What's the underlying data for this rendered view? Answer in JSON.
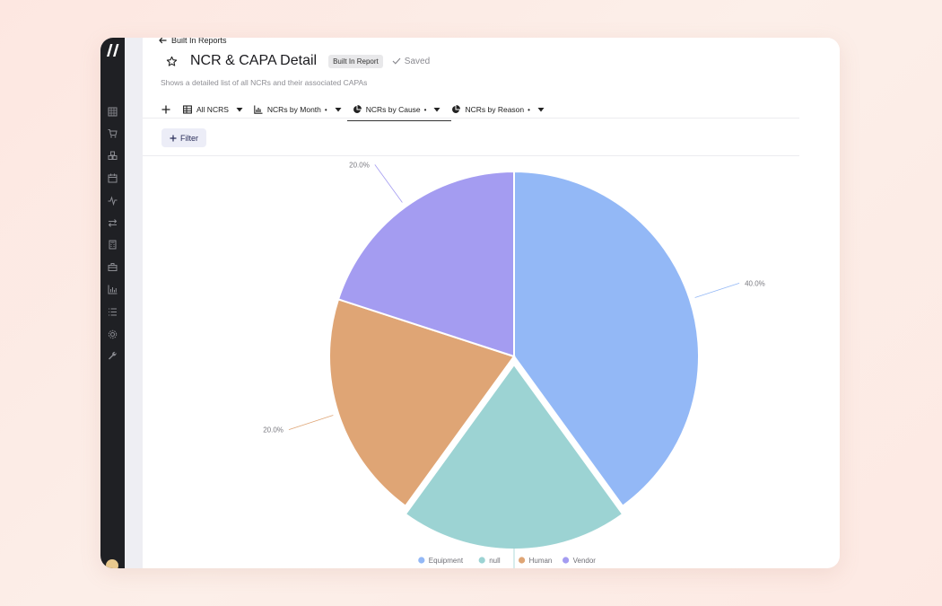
{
  "header": {
    "back_label": "Built In Reports",
    "title": "NCR & CAPA Detail",
    "badge": "Built In Report",
    "saved": "Saved",
    "subtitle": "Shows a detailed list of all NCRs and their associated CAPAs"
  },
  "tabs": [
    {
      "label": "All NCRS",
      "icon": "table-icon",
      "dot": ""
    },
    {
      "label": "NCRs by Month",
      "icon": "bar-chart-icon",
      "dot": "•"
    },
    {
      "label": "NCRs by Cause",
      "icon": "pie-chart-icon",
      "dot": "•",
      "active": true
    },
    {
      "label": "NCRs by Reason",
      "icon": "pie-chart-icon",
      "dot": "•"
    }
  ],
  "filter_label": "Filter",
  "sidebar": {
    "icons": [
      "grid-icon",
      "cart-icon",
      "boxes-icon",
      "calendar-icon",
      "activity-icon",
      "transfer-icon",
      "calculator-icon",
      "toolbox-icon",
      "bar-chart-icon",
      "list-icon",
      "gear-icon",
      "wrench-icon"
    ]
  },
  "chart_data": {
    "type": "pie",
    "categories": [
      "Equipment",
      "null",
      "Human",
      "Vendor"
    ],
    "values": [
      40.0,
      20.0,
      20.0,
      20.0
    ],
    "labels": [
      "40.0%",
      "20.0%",
      "20.0%",
      "20.0%"
    ],
    "colors": [
      "#93b8f6",
      "#9cd3d3",
      "#dfa575",
      "#a49cf1"
    ],
    "legend_position": "bottom",
    "exploded": "null"
  }
}
